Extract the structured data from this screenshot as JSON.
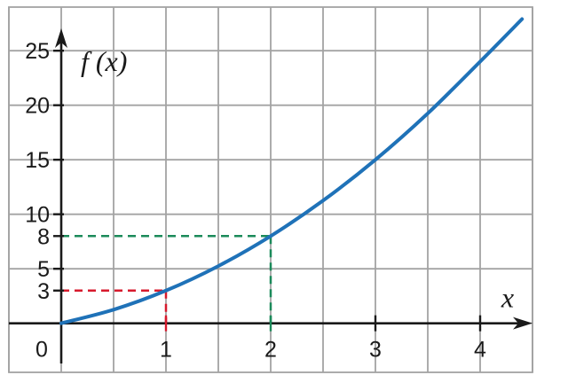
{
  "chart_data": {
    "type": "line",
    "title": "",
    "xlabel": "x",
    "ylabel": "f (x)",
    "origin_label": "0",
    "xlim": [
      -0.5,
      4.5
    ],
    "ylim": [
      -4.5,
      29
    ],
    "grid": true,
    "x_grid_step": 0.5,
    "y_grid_step": 5,
    "x_ticks": [
      {
        "value": 1,
        "label": "1",
        "color": "#d7192c"
      },
      {
        "value": 2,
        "label": "2",
        "color": "#1b8a5a"
      },
      {
        "value": 3,
        "label": "3",
        "color": "#1a1a1a"
      },
      {
        "value": 4,
        "label": "4",
        "color": "#1a1a1a"
      }
    ],
    "y_ticks": [
      {
        "value": 3,
        "label": "3",
        "color": "#d7192c"
      },
      {
        "value": 5,
        "label": "5",
        "color": "#1a1a1a"
      },
      {
        "value": 8,
        "label": "8",
        "color": "#1b8a5a"
      },
      {
        "value": 10,
        "label": "10",
        "color": "#1a1a1a"
      },
      {
        "value": 15,
        "label": "15",
        "color": "#1a1a1a"
      },
      {
        "value": 20,
        "label": "20",
        "color": "#1a1a1a"
      },
      {
        "value": 25,
        "label": "25",
        "color": "#1a1a1a"
      }
    ],
    "series": [
      {
        "color": "#1f72b8",
        "x": [
          0,
          0.5,
          1,
          1.5,
          2,
          2.5,
          3,
          3.5,
          4,
          4.4
        ],
        "y": [
          0,
          1.25,
          3,
          5.25,
          8,
          11.25,
          15,
          19.25,
          24,
          27.9
        ]
      }
    ],
    "guides": [
      {
        "x": 1,
        "y": 3,
        "color": "#d7192c"
      },
      {
        "x": 2,
        "y": 8,
        "color": "#1b8a5a"
      }
    ]
  }
}
